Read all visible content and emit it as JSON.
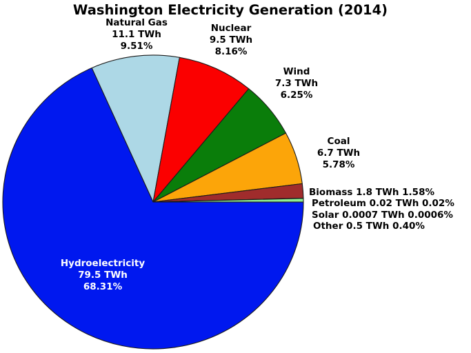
{
  "chart_data": {
    "type": "pie",
    "title": "Washington Electricity Generation (2014)",
    "unit": "TWh",
    "start_angle_deg": 114.1,
    "direction": "clockwise",
    "legend": "none",
    "outline_color": "#1a1a1a",
    "background_color": "#ffffff",
    "slices": [
      {
        "label": "Natural Gas",
        "twh": 11.1,
        "percent": 9.51,
        "color": "#add8e6",
        "label_color": "#000000",
        "label_lines": [
          "Natural Gas",
          "11.1 TWh",
          "9.51%"
        ]
      },
      {
        "label": "Nuclear",
        "twh": 9.5,
        "percent": 8.16,
        "color": "#fb0000",
        "label_color": "#000000",
        "label_lines": [
          "Nuclear",
          "9.5 TWh",
          "8.16%"
        ]
      },
      {
        "label": "Wind",
        "twh": 7.3,
        "percent": 6.25,
        "color": "#0a7d0a",
        "label_color": "#000000",
        "label_lines": [
          "Wind",
          "7.3 TWh",
          "6.25%"
        ]
      },
      {
        "label": "Coal",
        "twh": 6.7,
        "percent": 5.78,
        "color": "#fca509",
        "label_color": "#000000",
        "label_lines": [
          "Coal",
          "6.7 TWh",
          "5.78%"
        ]
      },
      {
        "label": "Biomass",
        "twh": 1.8,
        "percent": 1.58,
        "color": "#a02c2c",
        "label_color": "#000000",
        "label_lines": [
          "Biomass 1.8 TWh 1.58%"
        ]
      },
      {
        "label": "Petroleum",
        "twh": 0.02,
        "percent": 0.02,
        "color": "#808080",
        "label_color": "#000000",
        "label_lines": [
          "Petroleum 0.02 TWh 0.02%"
        ]
      },
      {
        "label": "Solar",
        "twh": 0.0007,
        "percent": 0.0006,
        "color": "#ffff66",
        "label_color": "#000000",
        "label_lines": [
          "Solar 0.0007 TWh 0.0006%"
        ]
      },
      {
        "label": "Other",
        "twh": 0.5,
        "percent": 0.4,
        "color": "#90ee90",
        "label_color": "#000000",
        "label_lines": [
          "Other 0.5 TWh 0.40%"
        ]
      },
      {
        "label": "Hydroelectricity",
        "twh": 79.5,
        "percent": 68.31,
        "color": "#0018ef",
        "label_color": "#ffffff",
        "label_lines": [
          "Hydroelectricity",
          "79.5 TWh",
          "68.31%"
        ]
      }
    ]
  }
}
